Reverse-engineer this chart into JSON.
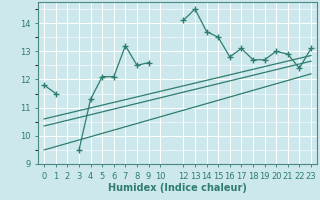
{
  "xlabel": "Humidex (Indice chaleur)",
  "ylabel": "",
  "bg_color": "#cce8ec",
  "grid_color": "#ffffff",
  "line_color": "#2e7d6e",
  "x_data": [
    0,
    1,
    2,
    3,
    4,
    5,
    6,
    7,
    8,
    9,
    10,
    12,
    13,
    14,
    15,
    16,
    17,
    18,
    19,
    20,
    21,
    22,
    23
  ],
  "y_data": [
    11.8,
    11.5,
    null,
    9.5,
    11.3,
    12.1,
    12.1,
    13.2,
    12.5,
    12.6,
    null,
    14.1,
    14.5,
    13.7,
    13.5,
    12.8,
    13.1,
    12.7,
    12.7,
    13.0,
    12.9,
    12.4,
    13.1
  ],
  "reg_lines": [
    {
      "x0": 0,
      "y0": 10.35,
      "x1": 23,
      "y1": 12.65
    },
    {
      "x0": 0,
      "y0": 10.6,
      "x1": 23,
      "y1": 12.85
    },
    {
      "x0": 0,
      "y0": 9.5,
      "x1": 23,
      "y1": 12.2
    }
  ],
  "ylim": [
    9.0,
    14.75
  ],
  "xlim": [
    -0.5,
    23.5
  ],
  "yticks": [
    9,
    10,
    11,
    12,
    13,
    14
  ],
  "xticks": [
    0,
    1,
    2,
    3,
    4,
    5,
    6,
    7,
    8,
    9,
    10,
    12,
    13,
    14,
    15,
    16,
    17,
    18,
    19,
    20,
    21,
    22,
    23
  ],
  "xlabel_fontsize": 7,
  "tick_fontsize": 6
}
